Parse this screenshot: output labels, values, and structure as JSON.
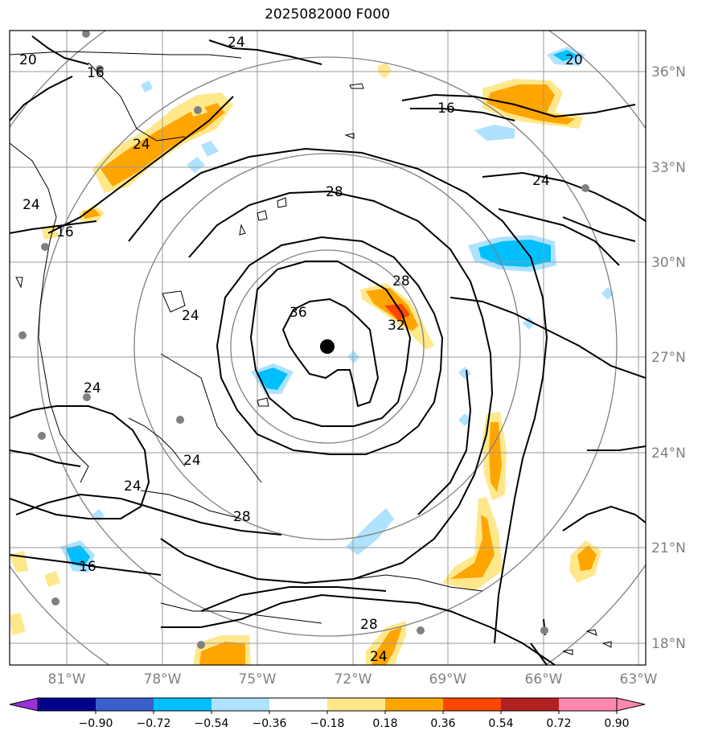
{
  "title": "2025082000 F000",
  "lat_labels": [
    "36°N",
    "33°N",
    "30°N",
    "27°N",
    "24°N",
    "21°N",
    "18°N"
  ],
  "lon_labels": [
    "81°W",
    "78°W",
    "75°W",
    "72°W",
    "69°W",
    "66°W",
    "63°W"
  ],
  "contour_labels": [
    "20",
    "24",
    "16",
    "24",
    "24",
    "16",
    "16",
    "20",
    "24",
    "28",
    "36",
    "32",
    "28",
    "24",
    "24",
    "28",
    "16",
    "24",
    "28",
    "24",
    "24"
  ],
  "colorbar": {
    "tick_labels": [
      "−0.90",
      "−0.72",
      "−0.54",
      "−0.36",
      "−0.18",
      "0.18",
      "0.36",
      "0.54",
      "0.72",
      "0.90"
    ],
    "colors": [
      "#9b30d9",
      "#00008b",
      "#3a5fcd",
      "#00bfff",
      "#aee2ff",
      "#ffffff",
      "#ffe88c",
      "#ffa500",
      "#ff4500",
      "#b22222",
      "#ff88b0",
      "#ff88b0"
    ]
  },
  "map_colors": {
    "land_outline": "#000000",
    "grid": "#999999",
    "range_rings": "#808080",
    "center_marker": "#000000",
    "station_dots": "#808080"
  }
}
